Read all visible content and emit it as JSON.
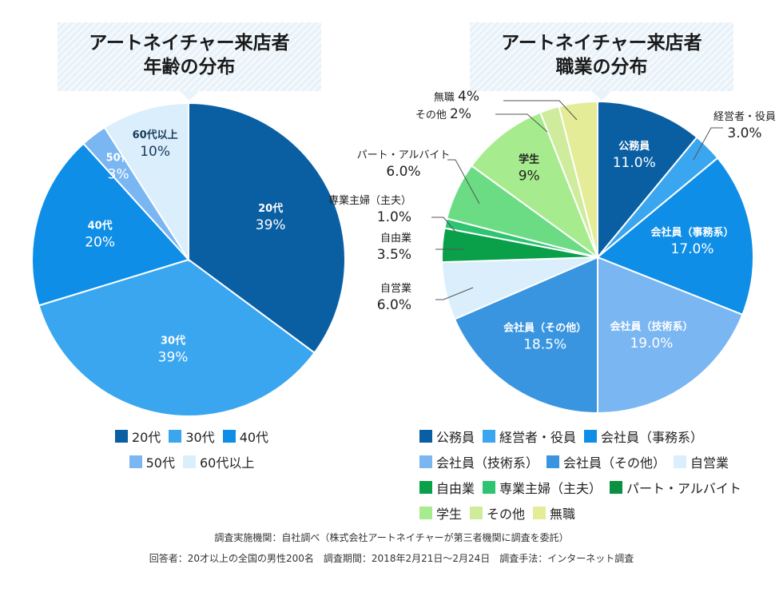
{
  "titles": {
    "left": [
      "アートネイチャー来店者",
      "年齢の分布"
    ],
    "right": [
      "アートネイチャー来店者",
      "職業の分布"
    ]
  },
  "chart_data": [
    {
      "type": "pie",
      "title": "アートネイチャー来店者 年齢の分布",
      "slices": [
        {
          "label": "20代",
          "value": 39,
          "value_label": "39%",
          "color": "#0a5fa3",
          "label_color": "#ffffff"
        },
        {
          "label": "30代",
          "value": 39,
          "value_label": "39%",
          "color": "#3aa6f0",
          "label_color": "#ffffff"
        },
        {
          "label": "40代",
          "value": 20,
          "value_label": "20%",
          "color": "#0f8ee8",
          "label_color": "#ffffff"
        },
        {
          "label": "50代",
          "value": 3,
          "value_label": "3%",
          "color": "#7ab6f2",
          "label_color": "#ffffff"
        },
        {
          "label": "60代以上",
          "value": 10,
          "value_label": "10%",
          "color": "#daeefb",
          "label_color": "#1a3a5a"
        }
      ],
      "legend": {
        "placement": "bottom"
      }
    },
    {
      "type": "pie",
      "title": "アートネイチャー来店者 職業の分布",
      "slices": [
        {
          "label": "公務員",
          "value": 11.0,
          "value_label": "11.0%",
          "color": "#0a5fa3",
          "label_color": "#ffffff",
          "outside": false
        },
        {
          "label": "経営者・役員",
          "value": 3.0,
          "value_label": "3.0%",
          "color": "#3aa6f0",
          "label_color": "#222222",
          "outside": true
        },
        {
          "label": "会社員（事務系）",
          "value": 17.0,
          "value_label": "17.0%",
          "color": "#0f8ee8",
          "label_color": "#ffffff",
          "outside": false
        },
        {
          "label": "会社員（技術系）",
          "value": 19.0,
          "value_label": "19.0%",
          "color": "#7ab6f2",
          "label_color": "#ffffff",
          "outside": false
        },
        {
          "label": "会社員（その他）",
          "value": 18.5,
          "value_label": "18.5%",
          "color": "#3a95e0",
          "label_color": "#ffffff",
          "outside": false
        },
        {
          "label": "自営業",
          "value": 6.0,
          "value_label": "6.0%",
          "color": "#daeefb",
          "label_color": "#222222",
          "outside": true
        },
        {
          "label": "自由業",
          "value": 3.5,
          "value_label": "3.5%",
          "color": "#0aa04a",
          "label_color": "#222222",
          "outside": true
        },
        {
          "label": "専業主婦（主夫）",
          "value": 1.0,
          "value_label": "1.0%",
          "color": "#2fc472",
          "label_color": "#222222",
          "outside": true
        },
        {
          "label": "パート・アルバイト",
          "value": 6.0,
          "value_label": "6.0%",
          "color": "#6bdc84",
          "label_color": "#222222",
          "outside": true
        },
        {
          "label": "学生",
          "value": 9,
          "value_label": "9%",
          "color": "#a6ec8e",
          "label_color": "#222222",
          "outside": false
        },
        {
          "label": "その他",
          "value": 2,
          "value_label": "2%",
          "color": "#cfeb9c",
          "label_color": "#222222",
          "outside": true
        },
        {
          "label": "無職",
          "value": 4,
          "value_label": "4%",
          "color": "#e4ec98",
          "label_color": "#222222",
          "outside": true
        }
      ],
      "legend": {
        "placement": "bottom"
      }
    }
  ],
  "legends": {
    "left": [
      [
        {
          "label": "20代",
          "color": "#0a5fa3"
        },
        {
          "label": "30代",
          "color": "#3aa6f0"
        },
        {
          "label": "40代",
          "color": "#0f8ee8"
        }
      ],
      [
        {
          "label": "50代",
          "color": "#7ab6f2"
        },
        {
          "label": "60代以上",
          "color": "#daeefb"
        }
      ]
    ],
    "right": [
      [
        {
          "label": "公務員",
          "color": "#0a5fa3"
        },
        {
          "label": "経営者・役員",
          "color": "#3aa6f0"
        },
        {
          "label": "会社員（事務系）",
          "color": "#0f8ee8"
        }
      ],
      [
        {
          "label": "会社員（技術系）",
          "color": "#7ab6f2"
        },
        {
          "label": "会社員（その他）",
          "color": "#3a95e0"
        },
        {
          "label": "自営業",
          "color": "#daeefb"
        }
      ],
      [
        {
          "label": "自由業",
          "color": "#0aa04a"
        },
        {
          "label": "専業主婦（主夫）",
          "color": "#2fc472"
        },
        {
          "label": "パート・アルバイト",
          "color": "#0a9040"
        }
      ],
      [
        {
          "label": "学生",
          "color": "#a6ec8e"
        },
        {
          "label": "その他",
          "color": "#cfeb9c"
        },
        {
          "label": "無職",
          "color": "#e4ec98"
        }
      ]
    ]
  },
  "footnotes": {
    "line1": "調査実施機関：自社調べ（株式会社アートネイチャーが第三者機関に調査を委託）",
    "line2": "回答者：20才以上の全国の男性200名　調査期間：2018年2月21日〜2月24日　調査手法：インターネット調査"
  }
}
